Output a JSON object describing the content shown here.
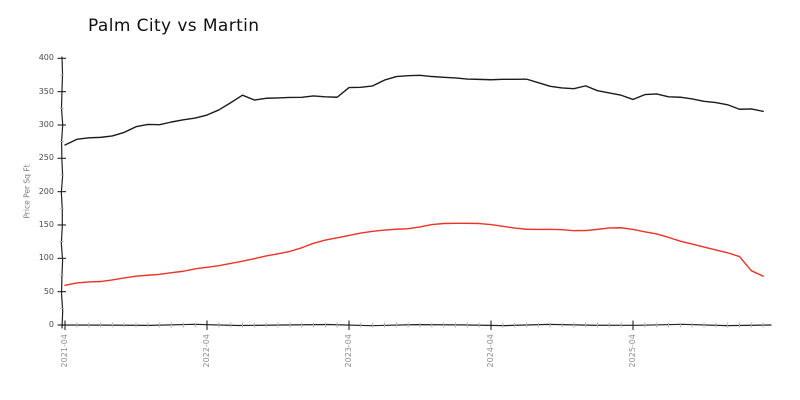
{
  "chart_data": {
    "type": "line",
    "style": "xkcd-sketch",
    "title": "Palm City vs Martin",
    "xlabel": "",
    "ylabel": "Price Per Sq Ft",
    "grid": false,
    "legend": "none",
    "ylim": [
      0,
      400
    ],
    "y_ticks": [
      0,
      50,
      100,
      150,
      200,
      250,
      300,
      350,
      400
    ],
    "y_tick_labels": [
      "0",
      "50",
      "100",
      "150",
      "200",
      "250",
      "300",
      "350",
      "400"
    ],
    "x_tick_labels": [
      "2021-04",
      "2022-04",
      "2023-04",
      "2024-04",
      "2025-04"
    ],
    "x_tick_month_indices": [
      0,
      12,
      24,
      36,
      48
    ],
    "x": [
      "2021-04",
      "2021-05",
      "2021-06",
      "2021-07",
      "2021-08",
      "2021-09",
      "2021-10",
      "2021-11",
      "2021-12",
      "2022-01",
      "2022-02",
      "2022-03",
      "2022-04",
      "2022-05",
      "2022-06",
      "2022-07",
      "2022-08",
      "2022-09",
      "2022-10",
      "2022-11",
      "2022-12",
      "2023-01",
      "2023-02",
      "2023-03",
      "2023-04",
      "2023-05",
      "2023-06",
      "2023-07",
      "2023-08",
      "2023-09",
      "2023-10",
      "2023-11",
      "2023-12",
      "2024-01",
      "2024-02",
      "2024-03",
      "2024-04",
      "2024-05",
      "2024-06",
      "2024-07",
      "2024-08",
      "2024-09",
      "2024-10",
      "2024-11",
      "2024-12",
      "2025-01",
      "2025-02",
      "2025-03",
      "2025-04",
      "2025-05",
      "2025-06",
      "2025-07",
      "2025-08",
      "2025-09",
      "2025-10",
      "2025-11",
      "2025-12",
      "2026-01",
      "2026-02",
      "2026-03"
    ],
    "series": [
      {
        "name": "Palm City",
        "color": "#1b1b1b",
        "values": [
          270,
          279,
          281,
          281,
          283,
          289,
          298,
          301,
          300,
          304,
          308,
          311,
          315,
          322,
          333,
          345,
          338,
          340,
          340,
          341,
          342,
          344,
          342,
          341,
          356,
          357,
          359,
          367,
          372,
          374,
          375,
          373,
          371,
          370,
          369,
          369,
          368,
          368,
          368,
          369,
          364,
          358,
          355,
          354,
          359,
          352,
          348,
          344,
          338,
          346,
          347,
          342,
          341,
          339,
          336,
          334,
          330,
          323,
          324,
          321
        ]
      },
      {
        "name": "Martin",
        "color": "#ee3224",
        "values": [
          60,
          63,
          64,
          65,
          68,
          71,
          73,
          74,
          76,
          79,
          81,
          84,
          86,
          89,
          93,
          96,
          99,
          103,
          107,
          111,
          116,
          122,
          127,
          131,
          135,
          138,
          140,
          142,
          144,
          145,
          147,
          150,
          152,
          153,
          153,
          152,
          150,
          148,
          146,
          144,
          143,
          143,
          143,
          142,
          142,
          143,
          145,
          146,
          144,
          140,
          136,
          131,
          126,
          122,
          117,
          112,
          108,
          103,
          82,
          73
        ]
      }
    ]
  },
  "colors": {
    "background": "#ffffff",
    "axis": "#222222",
    "major_tick": "#222222",
    "minor_tick": "#b5b5b5",
    "y_tick_text": "#4a4a4a",
    "x_tick_text": "#8f8f8f",
    "title_text": "#111111"
  }
}
